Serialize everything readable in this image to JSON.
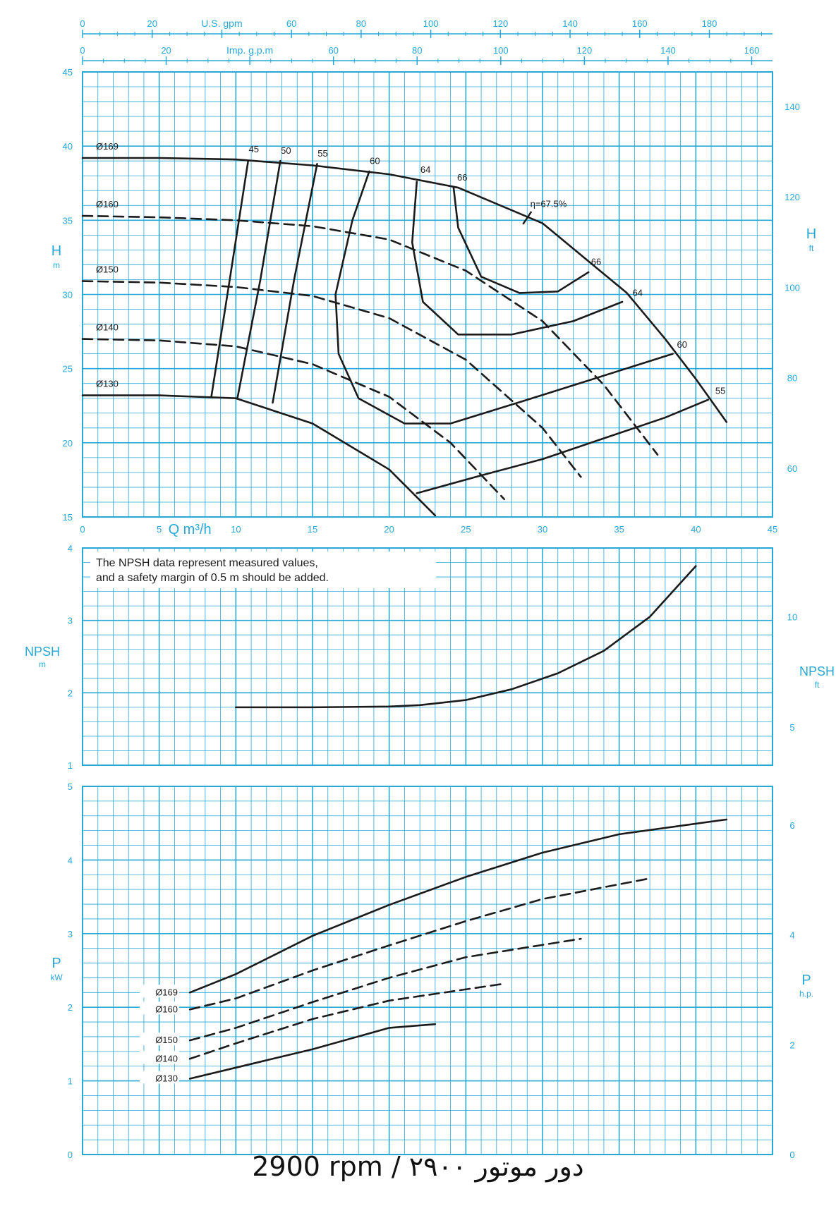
{
  "colors": {
    "grid": "#29a8d6",
    "text_axis": "#29a8d6",
    "curve": "#1b1b1b",
    "background": "#ffffff"
  },
  "footer": {
    "text": "2900 rpm / ۲۹۰۰ دور موتور"
  },
  "chart_data": [
    {
      "type": "line",
      "title": "",
      "xlabel": "Q m³/h",
      "ylabel": "H m",
      "ylabel_right": "H ft",
      "xlim": [
        0,
        45
      ],
      "ylim": [
        15,
        45
      ],
      "ylim_right_ft": [
        49.2,
        147.6
      ],
      "x_ticks": [
        0,
        5,
        10,
        15,
        20,
        25,
        30,
        35,
        40,
        45
      ],
      "y_ticks": [
        15,
        20,
        25,
        30,
        35,
        40,
        45
      ],
      "y_ticks_right": [
        60,
        80,
        100,
        120,
        140
      ],
      "secondary_x_axes": [
        {
          "label": "U.S. gpm",
          "factor": 4.4029,
          "ticks": [
            0,
            20,
            40,
            60,
            80,
            100,
            120,
            140,
            160,
            180
          ],
          "tick_labels": [
            "0",
            "20",
            "",
            "60",
            "80",
            "100",
            "120",
            "140",
            "160",
            "180"
          ]
        },
        {
          "label": "Imp. g.p.m",
          "factor": 3.6662,
          "ticks": [
            0,
            20,
            40,
            60,
            80,
            100,
            120,
            140,
            160
          ],
          "tick_labels": [
            "0",
            "20",
            "",
            "60",
            "80",
            "100",
            "120",
            "140",
            "160"
          ]
        }
      ],
      "grid": true,
      "series": [
        {
          "name": "Ø169",
          "style": "solid",
          "x": [
            0,
            5,
            10,
            15,
            20,
            24.5,
            30,
            35.5,
            38,
            40,
            42
          ],
          "y": [
            39.2,
            39.2,
            39.1,
            38.7,
            38.1,
            37.2,
            34.8,
            30.1,
            27.0,
            24.3,
            21.4
          ]
        },
        {
          "name": "Ø160",
          "style": "dashed",
          "x": [
            0,
            5,
            10,
            15,
            20,
            25,
            30,
            34,
            37.5
          ],
          "y": [
            35.3,
            35.2,
            35.0,
            34.6,
            33.7,
            31.6,
            28.2,
            23.9,
            19.2
          ]
        },
        {
          "name": "Ø150",
          "style": "dashed",
          "x": [
            0,
            5,
            10,
            15,
            20,
            25,
            30,
            32.5
          ],
          "y": [
            30.9,
            30.8,
            30.5,
            29.9,
            28.4,
            25.6,
            21.0,
            17.7
          ]
        },
        {
          "name": "Ø140",
          "style": "dashed",
          "x": [
            0,
            5,
            10,
            15,
            20,
            24,
            27.5
          ],
          "y": [
            27.0,
            26.9,
            26.5,
            25.3,
            23.1,
            20.0,
            16.2
          ]
        },
        {
          "name": "Ø130",
          "style": "solid",
          "x": [
            0,
            5,
            10,
            15,
            20,
            23
          ],
          "y": [
            23.2,
            23.2,
            23.0,
            21.3,
            18.2,
            15.1
          ]
        }
      ],
      "iso_efficiency": [
        {
          "label": "45",
          "x": [
            10.8,
            9.6,
            8.4
          ],
          "y": [
            39.0,
            31.0,
            23.1
          ]
        },
        {
          "label": "50",
          "x": [
            12.9,
            11.6,
            10.1
          ],
          "y": [
            39.0,
            31.0,
            23.0
          ]
        },
        {
          "label": "55",
          "x": [
            15.3,
            13.8,
            12.4
          ],
          "y": [
            38.8,
            31.0,
            22.7
          ]
        },
        {
          "label": "60",
          "x": [
            18.7,
            17.6,
            16.5,
            16.7,
            18.0,
            21.0,
            24.0,
            29.0,
            33.0,
            38.5
          ],
          "y": [
            38.3,
            35.0,
            30.0,
            26.0,
            23.0,
            21.3,
            21.3,
            22.9,
            24.2,
            26.0
          ]
        },
        {
          "label": "64",
          "x": [
            21.8,
            21.5,
            22.2,
            24.5,
            28.0,
            32.0,
            35.2
          ],
          "y": [
            37.6,
            33.5,
            29.5,
            27.3,
            27.3,
            28.2,
            29.5
          ]
        },
        {
          "label": "66",
          "x": [
            24.2,
            24.5,
            26.0,
            28.5,
            31.0,
            33.0
          ],
          "y": [
            37.2,
            34.5,
            31.2,
            30.1,
            30.2,
            31.5
          ]
        },
        {
          "label": "55",
          "x": [
            21.8,
            26.0,
            30.0,
            34.0,
            38.0,
            40.8
          ],
          "y": [
            16.6,
            17.8,
            18.9,
            20.3,
            21.7,
            22.9
          ]
        }
      ],
      "annotations": [
        "η=67.5%",
        "Ø169",
        "Ø160",
        "Ø150",
        "Ø140",
        "Ø130",
        "45",
        "50",
        "55",
        "60",
        "64",
        "66",
        "66",
        "64",
        "60",
        "55"
      ],
      "efficiency_labels_inner": [
        "45",
        "50",
        "55",
        "60",
        "64",
        "66"
      ],
      "efficiency_labels_outer": [
        "66",
        "64",
        "60",
        "55"
      ],
      "peak_label": "η=67.5%",
      "peak_mark": {
        "x": 29,
        "y": 35.4
      }
    },
    {
      "type": "line",
      "title": "",
      "xlabel": "",
      "ylabel": "NPSH m",
      "ylabel_right": "NPSH ft",
      "xlim": [
        0,
        45
      ],
      "ylim": [
        1,
        4
      ],
      "y_ticks": [
        1,
        2,
        3,
        4
      ],
      "y_ticks_right": [
        5,
        10
      ],
      "grid": true,
      "note": [
        "The NPSH data represent measured values,",
        "and a safety margin of 0.5 m should be added."
      ],
      "series": [
        {
          "name": "",
          "style": "solid",
          "x": [
            10,
            15,
            20,
            22,
            25,
            28,
            31,
            34,
            37,
            40
          ],
          "y": [
            1.8,
            1.8,
            1.81,
            1.83,
            1.9,
            2.05,
            2.27,
            2.58,
            3.05,
            3.75
          ]
        }
      ]
    },
    {
      "type": "line",
      "title": "",
      "xlabel": "",
      "ylabel": "P kW",
      "ylabel_right": "P h.p.",
      "xlim": [
        0,
        45
      ],
      "ylim": [
        0,
        5
      ],
      "y_ticks": [
        0,
        1,
        2,
        3,
        4,
        5
      ],
      "y_ticks_right": [
        0,
        2,
        4,
        6
      ],
      "grid": true,
      "series": [
        {
          "name": "Ø169",
          "style": "solid",
          "x": [
            7,
            10,
            15,
            20,
            25,
            30,
            35,
            42
          ],
          "y": [
            2.2,
            2.45,
            2.97,
            3.39,
            3.77,
            4.1,
            4.35,
            4.55
          ]
        },
        {
          "name": "Ø160",
          "style": "dashed",
          "x": [
            7,
            10,
            15,
            20,
            25,
            30,
            37
          ],
          "y": [
            1.97,
            2.12,
            2.5,
            2.84,
            3.17,
            3.47,
            3.75
          ]
        },
        {
          "name": "Ø150",
          "style": "dashed",
          "x": [
            7,
            10,
            15,
            20,
            25,
            32.5
          ],
          "y": [
            1.55,
            1.72,
            2.07,
            2.4,
            2.68,
            2.93
          ]
        },
        {
          "name": "Ø140",
          "style": "dashed",
          "x": [
            7,
            10,
            15,
            20,
            27.5
          ],
          "y": [
            1.3,
            1.51,
            1.84,
            2.09,
            2.32
          ]
        },
        {
          "name": "Ø130",
          "style": "solid",
          "x": [
            7,
            10,
            15,
            20,
            23
          ],
          "y": [
            1.03,
            1.18,
            1.43,
            1.72,
            1.77
          ]
        }
      ],
      "legend_labels": [
        "Ø169",
        "Ø160",
        "Ø150",
        "Ø140",
        "Ø130"
      ],
      "legend_placement": "left"
    }
  ]
}
